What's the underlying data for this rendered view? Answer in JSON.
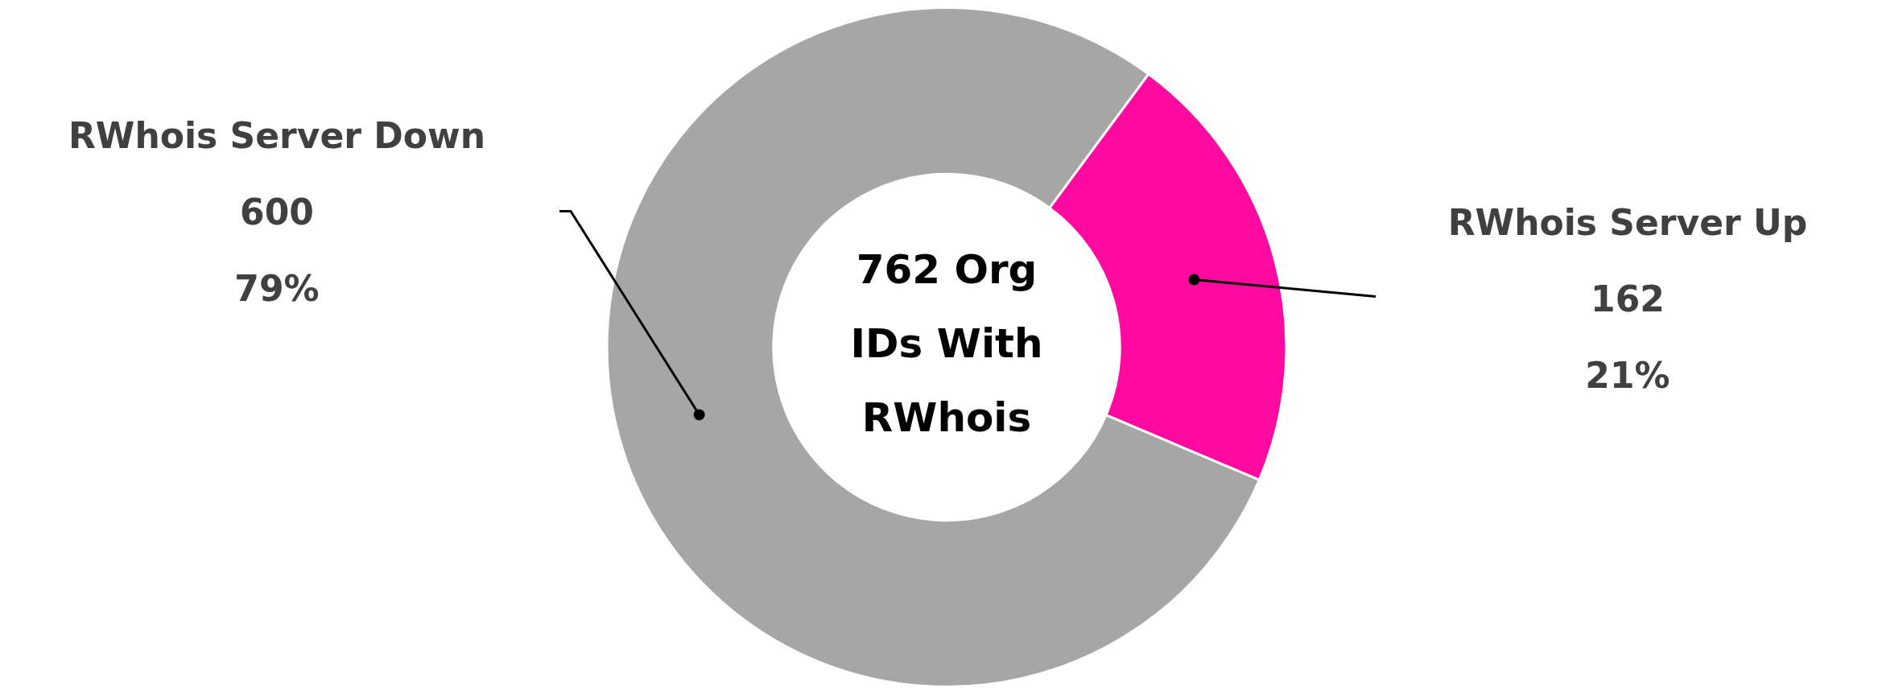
{
  "chart_data": {
    "type": "donut",
    "categories": [
      "RWhois Server Down",
      "RWhois Server Up"
    ],
    "values": [
      600,
      162
    ],
    "colors": [
      "#a6a6a6",
      "#ff0aa0"
    ],
    "value_labels": [
      "600\n79%",
      "162\n21%"
    ],
    "annotations": [
      "762 Org IDs With RWhois"
    ],
    "legend": false
  }
}
